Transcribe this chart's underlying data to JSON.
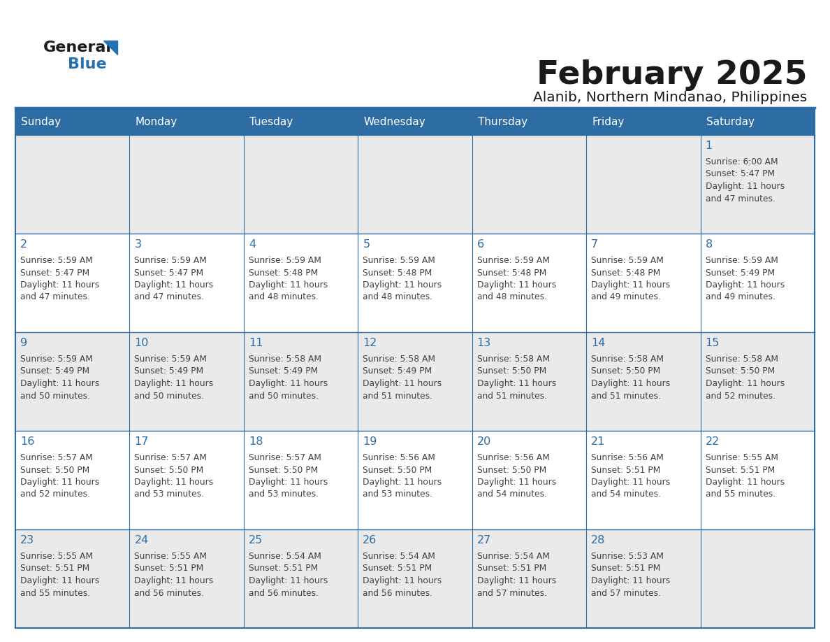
{
  "title": "February 2025",
  "subtitle": "Alanib, Northern Mindanao, Philippines",
  "header_bg": "#2E6DA4",
  "header_text": "#FFFFFF",
  "day_names": [
    "Sunday",
    "Monday",
    "Tuesday",
    "Wednesday",
    "Thursday",
    "Friday",
    "Saturday"
  ],
  "cell_bg_light": "#EAEAEA",
  "cell_bg_white": "#FFFFFF",
  "cell_border": "#2E6DA4",
  "day_number_color": "#2E6DA4",
  "info_text_color": "#404040",
  "logo_general_color": "#1a1a1a",
  "logo_blue_color": "#2771B0",
  "calendar": [
    [
      null,
      null,
      null,
      null,
      null,
      null,
      1
    ],
    [
      2,
      3,
      4,
      5,
      6,
      7,
      8
    ],
    [
      9,
      10,
      11,
      12,
      13,
      14,
      15
    ],
    [
      16,
      17,
      18,
      19,
      20,
      21,
      22
    ],
    [
      23,
      24,
      25,
      26,
      27,
      28,
      null
    ]
  ],
  "sun_data": {
    "1": {
      "rise": "6:00 AM",
      "set": "5:47 PM",
      "hours": 11,
      "mins": 47
    },
    "2": {
      "rise": "5:59 AM",
      "set": "5:47 PM",
      "hours": 11,
      "mins": 47
    },
    "3": {
      "rise": "5:59 AM",
      "set": "5:47 PM",
      "hours": 11,
      "mins": 47
    },
    "4": {
      "rise": "5:59 AM",
      "set": "5:48 PM",
      "hours": 11,
      "mins": 48
    },
    "5": {
      "rise": "5:59 AM",
      "set": "5:48 PM",
      "hours": 11,
      "mins": 48
    },
    "6": {
      "rise": "5:59 AM",
      "set": "5:48 PM",
      "hours": 11,
      "mins": 48
    },
    "7": {
      "rise": "5:59 AM",
      "set": "5:48 PM",
      "hours": 11,
      "mins": 49
    },
    "8": {
      "rise": "5:59 AM",
      "set": "5:49 PM",
      "hours": 11,
      "mins": 49
    },
    "9": {
      "rise": "5:59 AM",
      "set": "5:49 PM",
      "hours": 11,
      "mins": 50
    },
    "10": {
      "rise": "5:59 AM",
      "set": "5:49 PM",
      "hours": 11,
      "mins": 50
    },
    "11": {
      "rise": "5:58 AM",
      "set": "5:49 PM",
      "hours": 11,
      "mins": 50
    },
    "12": {
      "rise": "5:58 AM",
      "set": "5:49 PM",
      "hours": 11,
      "mins": 51
    },
    "13": {
      "rise": "5:58 AM",
      "set": "5:50 PM",
      "hours": 11,
      "mins": 51
    },
    "14": {
      "rise": "5:58 AM",
      "set": "5:50 PM",
      "hours": 11,
      "mins": 51
    },
    "15": {
      "rise": "5:58 AM",
      "set": "5:50 PM",
      "hours": 11,
      "mins": 52
    },
    "16": {
      "rise": "5:57 AM",
      "set": "5:50 PM",
      "hours": 11,
      "mins": 52
    },
    "17": {
      "rise": "5:57 AM",
      "set": "5:50 PM",
      "hours": 11,
      "mins": 53
    },
    "18": {
      "rise": "5:57 AM",
      "set": "5:50 PM",
      "hours": 11,
      "mins": 53
    },
    "19": {
      "rise": "5:56 AM",
      "set": "5:50 PM",
      "hours": 11,
      "mins": 53
    },
    "20": {
      "rise": "5:56 AM",
      "set": "5:50 PM",
      "hours": 11,
      "mins": 54
    },
    "21": {
      "rise": "5:56 AM",
      "set": "5:51 PM",
      "hours": 11,
      "mins": 54
    },
    "22": {
      "rise": "5:55 AM",
      "set": "5:51 PM",
      "hours": 11,
      "mins": 55
    },
    "23": {
      "rise": "5:55 AM",
      "set": "5:51 PM",
      "hours": 11,
      "mins": 55
    },
    "24": {
      "rise": "5:55 AM",
      "set": "5:51 PM",
      "hours": 11,
      "mins": 56
    },
    "25": {
      "rise": "5:54 AM",
      "set": "5:51 PM",
      "hours": 11,
      "mins": 56
    },
    "26": {
      "rise": "5:54 AM",
      "set": "5:51 PM",
      "hours": 11,
      "mins": 56
    },
    "27": {
      "rise": "5:54 AM",
      "set": "5:51 PM",
      "hours": 11,
      "mins": 57
    },
    "28": {
      "rise": "5:53 AM",
      "set": "5:51 PM",
      "hours": 11,
      "mins": 57
    }
  }
}
